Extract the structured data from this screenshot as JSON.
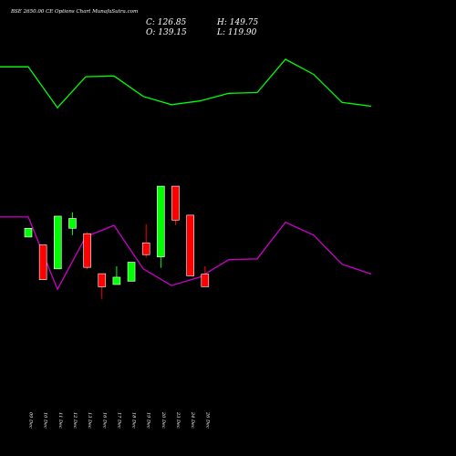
{
  "chart_data": {
    "type": "candlestick",
    "title": "BSE 2650.00  CE Options  Chart MunafaSutra.com",
    "ohlc": {
      "close_label": "C: 126.85",
      "high_label": "H: 149.75",
      "open_label": "O: 139.15",
      "low_label": "L: 119.90"
    },
    "x_labels": [
      "09 Dec",
      "10 Dec",
      "11 Dec",
      "12 Dec",
      "13 Dec",
      "16 Dec",
      "17 Dec",
      "18 Dec",
      "19 Dec",
      "20 Dec",
      "23 Dec",
      "24 Dec",
      "26 Dec"
    ],
    "candles": [
      {
        "label": "09 Dec",
        "open": 158.0,
        "close": 166.0,
        "high": 166.0,
        "low": 158.0,
        "color": "green"
      },
      {
        "label": "10 Dec",
        "open": 150.8,
        "close": 119.1,
        "high": 150.8,
        "low": 119.1,
        "color": "red"
      },
      {
        "label": "11 Dec",
        "open": 128.9,
        "close": 177.1,
        "high": 177.1,
        "low": 128.9,
        "color": "green"
      },
      {
        "label": "12 Dec",
        "open": 166.0,
        "close": 175.0,
        "high": 180.6,
        "low": 159.7,
        "color": "green"
      },
      {
        "label": "13 Dec",
        "open": 161.1,
        "close": 130.3,
        "high": 162.6,
        "low": 128.6,
        "color": "red"
      },
      {
        "label": "16 Dec",
        "open": 124.5,
        "close": 112.5,
        "high": 124.5,
        "low": 101.5,
        "color": "red"
      },
      {
        "label": "17 Dec",
        "open": 114.6,
        "close": 121.3,
        "high": 131.2,
        "low": 114.6,
        "color": "green"
      },
      {
        "label": "18 Dec",
        "open": 117.6,
        "close": 135.0,
        "high": 135.0,
        "low": 117.6,
        "color": "green"
      },
      {
        "label": "19 Dec",
        "open": 152.6,
        "close": 141.9,
        "high": 169.7,
        "low": 139.1,
        "color": "red"
      },
      {
        "label": "20 Dec",
        "open": 139.8,
        "close": 204.5,
        "high": 204.5,
        "low": 129.8,
        "color": "green"
      },
      {
        "label": "23 Dec",
        "open": 204.5,
        "close": 173.5,
        "high": 204.5,
        "low": 169.0,
        "color": "red"
      },
      {
        "label": "24 Dec",
        "open": 178.0,
        "close": 122.5,
        "high": 178.0,
        "low": 122.5,
        "color": "red"
      },
      {
        "label": "26 Dec",
        "open": 124.1,
        "close": 112.6,
        "high": 131.2,
        "low": 112.6,
        "color": "red"
      }
    ],
    "overlay_series": [
      {
        "color": "#00ff00",
        "values": [
          90,
          90,
          36,
          77,
          78,
          51,
          40,
          45,
          55,
          56,
          100,
          80,
          43,
          38
        ]
      },
      {
        "color": "#cc00cc",
        "values": [
          60,
          60,
          -35,
          34,
          49,
          -8,
          -30,
          -19,
          4,
          5,
          53,
          36,
          -2,
          -15
        ]
      }
    ],
    "colors": {
      "background": "#000000",
      "up": "#00ff00",
      "down": "#ff0000",
      "text": "#ffffff"
    }
  }
}
